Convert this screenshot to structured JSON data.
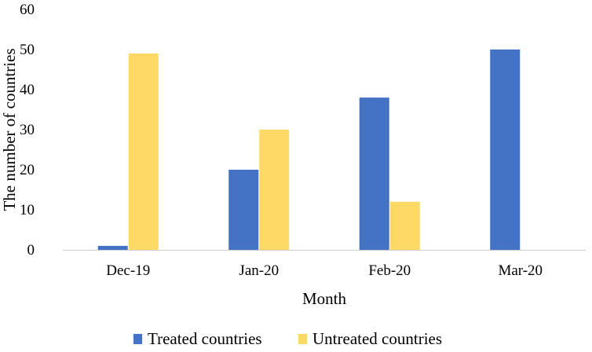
{
  "chart_data": {
    "type": "bar",
    "categories": [
      "Dec-19",
      "Jan-20",
      "Feb-20",
      "Mar-20"
    ],
    "series": [
      {
        "name": "Treated countries",
        "values": [
          1,
          20,
          38,
          50
        ],
        "color": "#4472C4"
      },
      {
        "name": "Untreated countries",
        "values": [
          49,
          30,
          12,
          0
        ],
        "color": "#FFD966"
      }
    ],
    "title": "",
    "xlabel": "Month",
    "ylabel": "The number of countries",
    "ylim": [
      0,
      60
    ],
    "yticks": [
      0,
      10,
      20,
      30,
      40,
      50,
      60
    ],
    "grid": false,
    "legend_position": "bottom"
  }
}
